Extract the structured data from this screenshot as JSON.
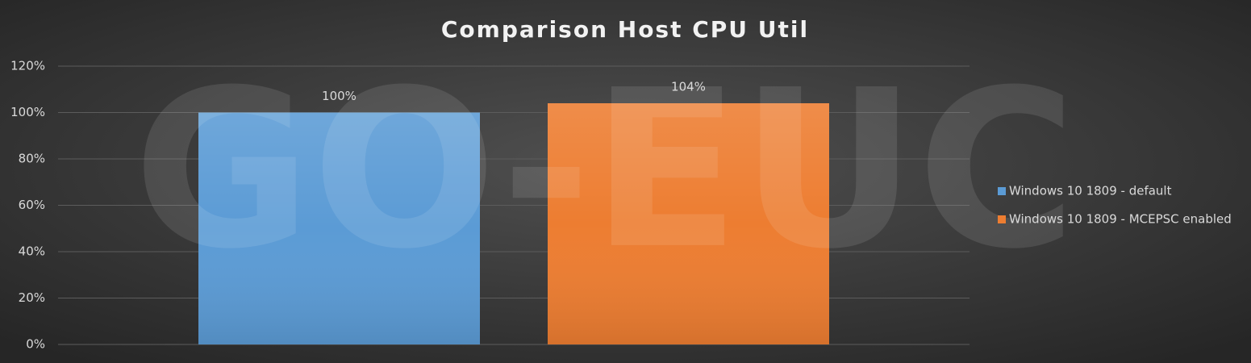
{
  "chart_data": {
    "type": "bar",
    "title": "Comparison Host CPU Util",
    "watermark": "GO-EUC",
    "series": [
      {
        "name": "Windows 10 1809 - default",
        "color": "#5b9bd5",
        "values": [
          100
        ],
        "value_labels": [
          "100%"
        ]
      },
      {
        "name": "Windows 10 1809 - MCEPSC enabled",
        "color": "#ed7d31",
        "values": [
          104
        ],
        "value_labels": [
          "104%"
        ]
      }
    ],
    "ylim": [
      0,
      120
    ],
    "yticks": [
      {
        "value": 0,
        "label": "0%"
      },
      {
        "value": 20,
        "label": "20%"
      },
      {
        "value": 40,
        "label": "40%"
      },
      {
        "value": 60,
        "label": "60%"
      },
      {
        "value": 80,
        "label": "80%"
      },
      {
        "value": 100,
        "label": "100%"
      },
      {
        "value": 120,
        "label": "120%"
      }
    ],
    "grid": true,
    "legend": "right"
  }
}
